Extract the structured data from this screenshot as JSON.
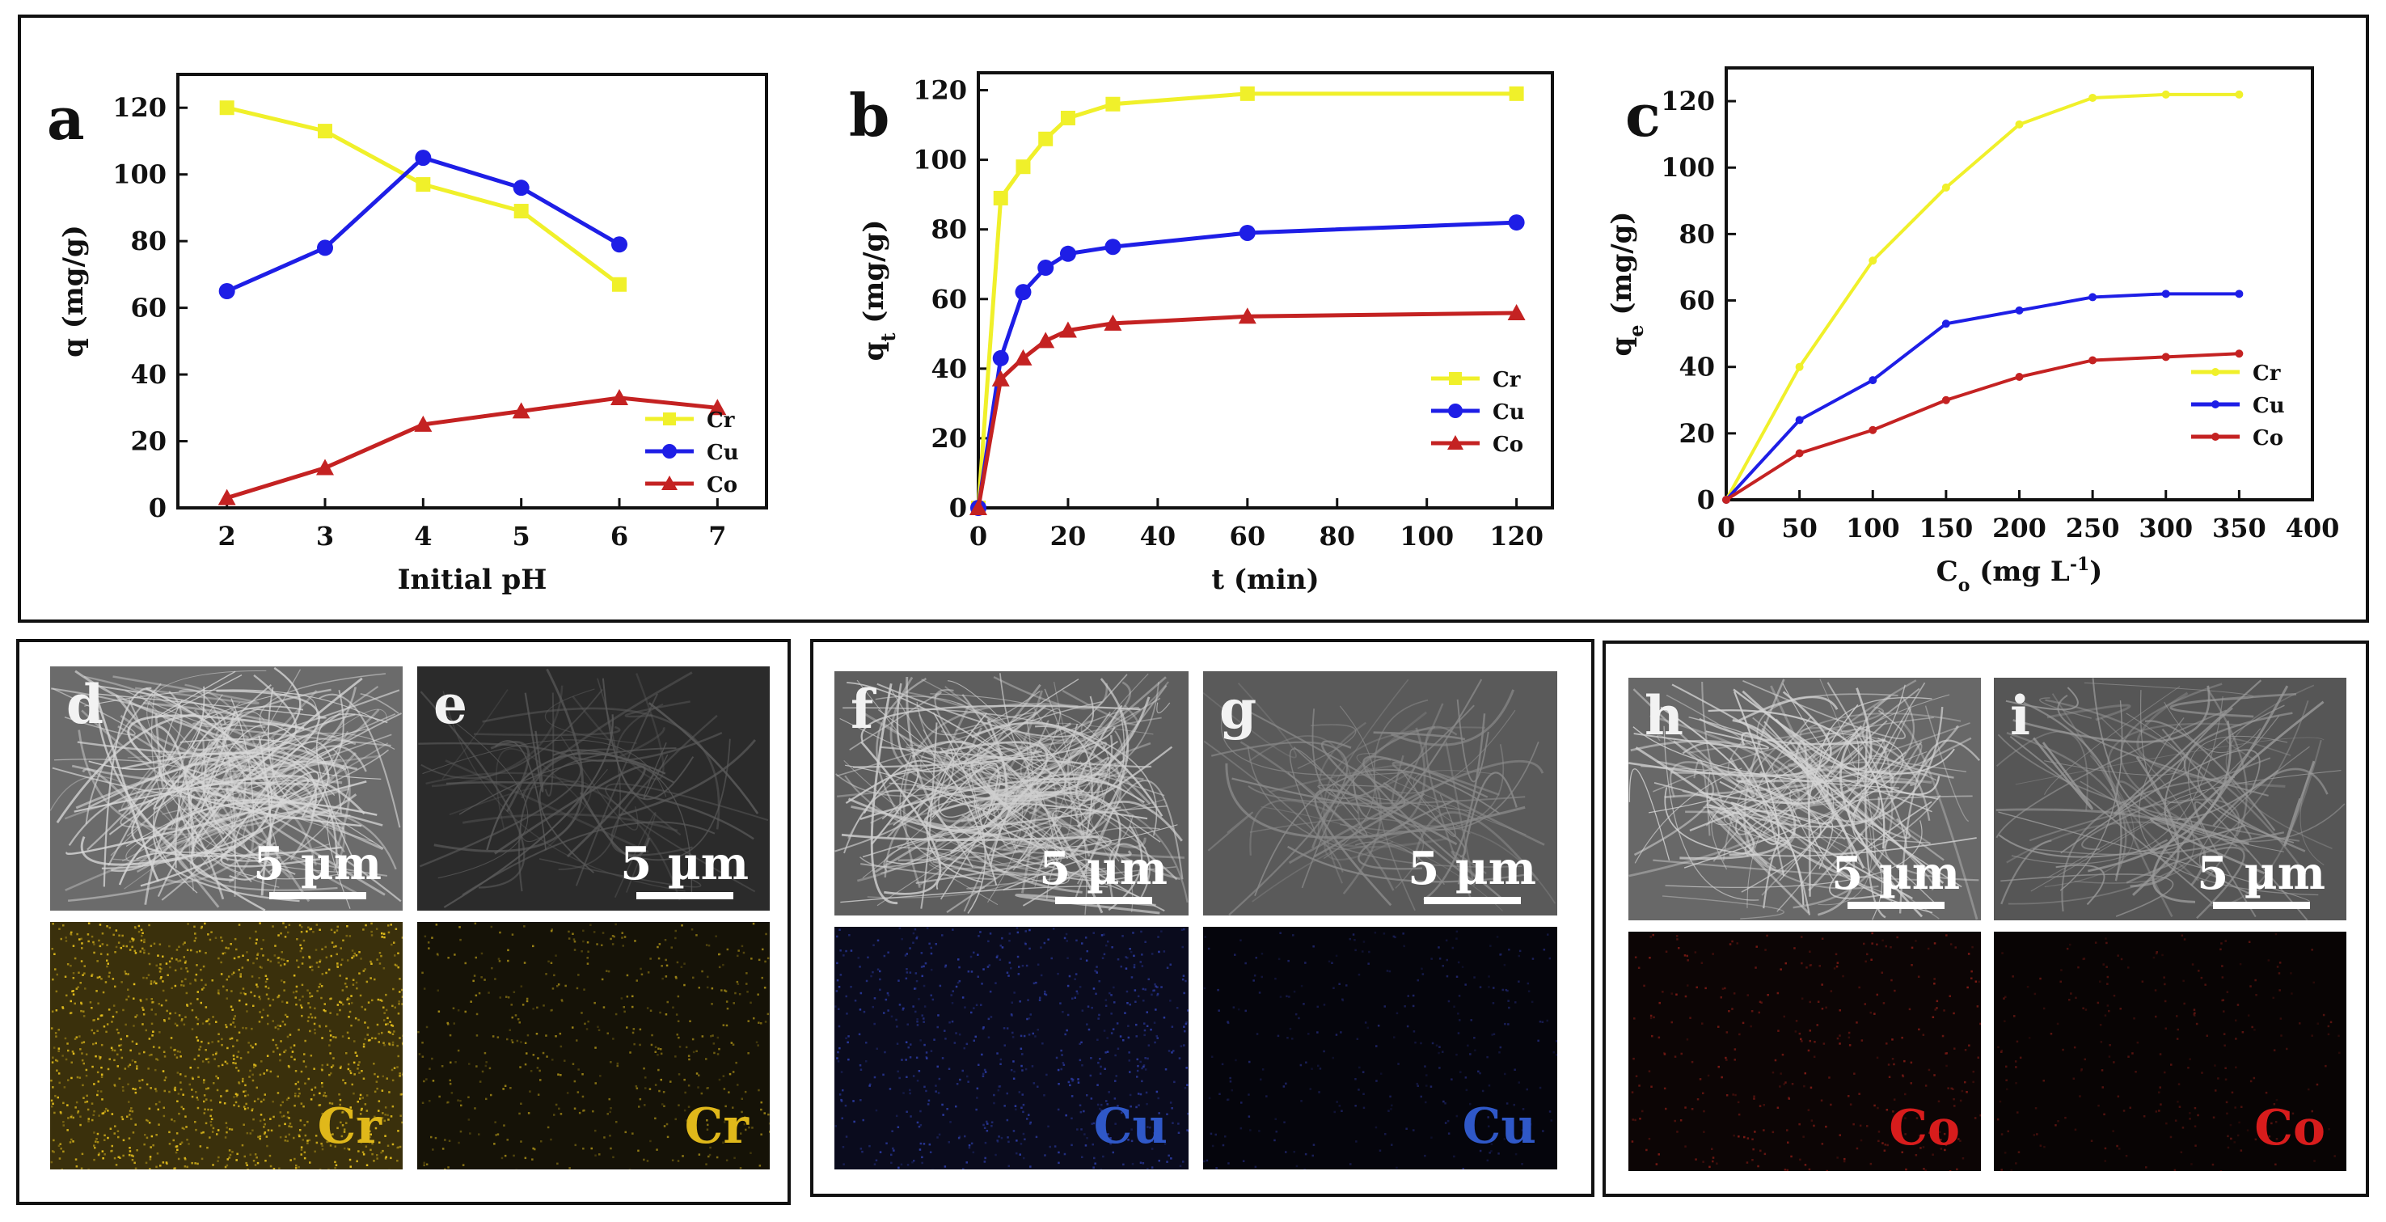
{
  "colors": {
    "Cr": "#f0f02a",
    "Cu": "#1e1ee6",
    "Co": "#c42222",
    "cr_label": "#e0b81a",
    "cu_label": "#2f58c8",
    "co_label": "#d81c1c"
  },
  "chart_data": [
    {
      "panel": "a",
      "type": "line",
      "title": "",
      "xlabel": "Initial pH",
      "ylabel": "q (mg/g)",
      "xlim": [
        1.5,
        7.5
      ],
      "ylim": [
        0,
        130
      ],
      "xticks": [
        2,
        3,
        4,
        5,
        6,
        7
      ],
      "yticks": [
        0,
        20,
        40,
        60,
        80,
        100,
        120
      ],
      "legend_position": "bottom-right",
      "series": [
        {
          "name": "Cr",
          "marker": "square",
          "x": [
            2,
            3,
            4,
            5,
            6
          ],
          "values": [
            120,
            113,
            97,
            89,
            67
          ]
        },
        {
          "name": "Cu",
          "marker": "circle",
          "x": [
            2,
            3,
            4,
            5,
            6
          ],
          "values": [
            65,
            78,
            105,
            96,
            79
          ]
        },
        {
          "name": "Co",
          "marker": "triangle",
          "x": [
            2,
            3,
            4,
            5,
            6,
            7
          ],
          "values": [
            3,
            12,
            25,
            29,
            33,
            30
          ]
        }
      ]
    },
    {
      "panel": "b",
      "type": "line",
      "title": "",
      "xlabel": "t (min)",
      "ylabel_main": "q",
      "ylabel_sub": "t",
      "ylabel_tail": " (mg/g)",
      "xlim": [
        0,
        128
      ],
      "ylim": [
        0,
        125
      ],
      "xticks": [
        0,
        20,
        40,
        60,
        80,
        100,
        120
      ],
      "yticks": [
        0,
        20,
        40,
        60,
        80,
        100,
        120
      ],
      "legend_position": "bottom-right",
      "series": [
        {
          "name": "Cr",
          "marker": "square",
          "x": [
            0,
            5,
            10,
            15,
            20,
            30,
            60,
            120
          ],
          "values": [
            0,
            89,
            98,
            106,
            112,
            116,
            119,
            119
          ]
        },
        {
          "name": "Cu",
          "marker": "circle",
          "x": [
            0,
            5,
            10,
            15,
            20,
            30,
            60,
            120
          ],
          "values": [
            0,
            43,
            62,
            69,
            73,
            75,
            79,
            82
          ]
        },
        {
          "name": "Co",
          "marker": "triangle",
          "x": [
            0,
            5,
            10,
            15,
            20,
            30,
            60,
            120
          ],
          "values": [
            0,
            37,
            43,
            48,
            51,
            53,
            55,
            56
          ]
        }
      ]
    },
    {
      "panel": "c",
      "type": "line",
      "title": "",
      "xlabel_main": "C",
      "xlabel_sub": "o",
      "xlabel_tail": " (mg L",
      "xlabel_sup": "-1",
      "xlabel_end": ")",
      "ylabel_main": "q",
      "ylabel_sub": "e",
      "ylabel_tail": " (mg/g)",
      "xlim": [
        0,
        400
      ],
      "ylim": [
        0,
        130
      ],
      "xticks": [
        0,
        50,
        100,
        150,
        200,
        250,
        300,
        350,
        400
      ],
      "yticks": [
        0,
        20,
        40,
        60,
        80,
        100,
        120
      ],
      "legend_position": "bottom-right",
      "series": [
        {
          "name": "Cr",
          "marker": "small",
          "x": [
            0,
            50,
            100,
            150,
            200,
            250,
            300,
            350
          ],
          "values": [
            0,
            40,
            72,
            94,
            113,
            121,
            122,
            122
          ]
        },
        {
          "name": "Cu",
          "marker": "small",
          "x": [
            0,
            50,
            100,
            150,
            200,
            250,
            300,
            350
          ],
          "values": [
            0,
            24,
            36,
            53,
            57,
            61,
            62,
            62
          ]
        },
        {
          "name": "Co",
          "marker": "small",
          "x": [
            0,
            50,
            100,
            150,
            200,
            250,
            300,
            350
          ],
          "values": [
            0,
            14,
            21,
            30,
            37,
            42,
            43,
            44
          ]
        }
      ]
    }
  ],
  "images": {
    "d": {
      "letter": "d",
      "scale": "5 µm"
    },
    "e": {
      "letter": "e",
      "scale": "5 µm"
    },
    "f": {
      "letter": "f",
      "scale": "5 µm"
    },
    "g": {
      "letter": "g",
      "scale": "5 µm"
    },
    "h": {
      "letter": "h",
      "scale": "5 µm"
    },
    "i": {
      "letter": "i",
      "scale": "5 µm"
    },
    "map_labels": {
      "d": "Cr",
      "e": "Cr",
      "f": "Cu",
      "g": "Cu",
      "h": "Co",
      "i": "Co"
    }
  }
}
